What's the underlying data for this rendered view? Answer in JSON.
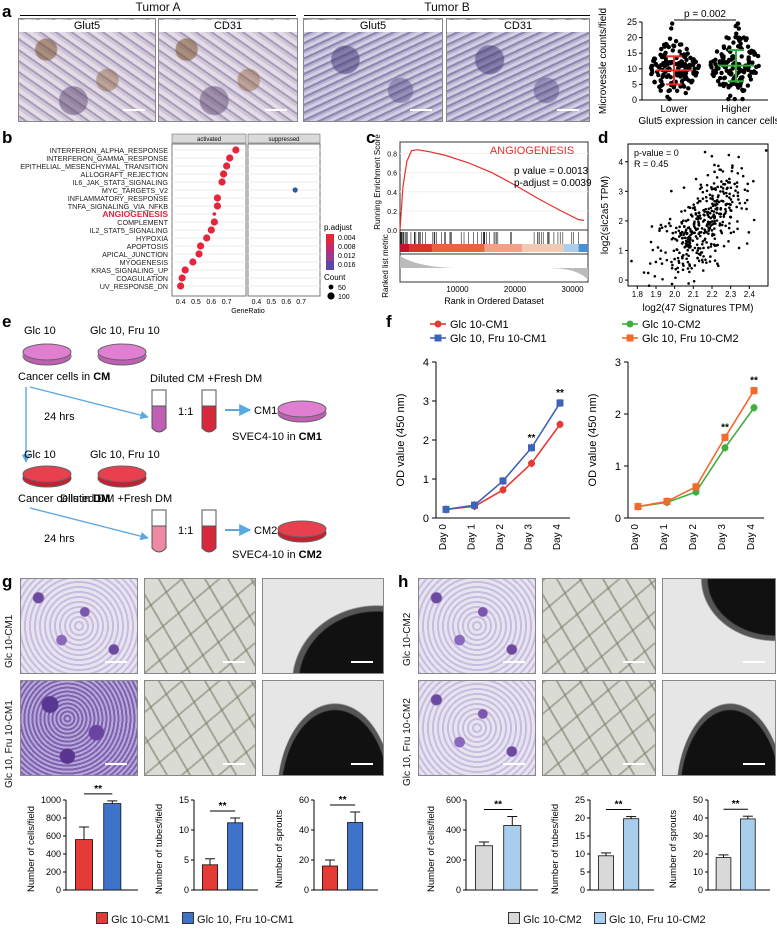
{
  "panels": {
    "a": "a",
    "b": "b",
    "c": "c",
    "d": "d",
    "e": "e",
    "f": "f",
    "g": "g",
    "h": "h"
  },
  "panel_a": {
    "group_left": "Tumor A",
    "group_right": "Tumor B",
    "stain1": "Glut5",
    "stain2": "CD31",
    "stain3": "Glut5",
    "stain4": "CD31"
  },
  "panel_b": {
    "header_activated": "activated",
    "header_suppressed": "suppressed",
    "legend_title_padj": "p.adjust",
    "legend_title_count": "Count",
    "colors": {
      "low": "#e6243a",
      "high": "#2d5aa8"
    }
  },
  "panel_c": {
    "title": "ANGIOGENESIS",
    "stats1": "p value = 0.0013",
    "stats2": "p-adjust = 0.0039",
    "ylabel_top": "Running Enrichment Score",
    "ylabel_bottom": "Ranked list metric",
    "xlabel": "Rank in Ordered Dataset"
  },
  "panel_d": {
    "stat_p": "p-value = 0",
    "stat_r": "R = 0.45",
    "xlabel": "log2(47 Signatures TPM)",
    "ylabel": "log2(slc2a5 TPM)"
  },
  "panel_e": {
    "dish1": "Glc 10",
    "dish2": "Glc 10, Fru 10",
    "cancer_cm_prefix": "Cancer cells in ",
    "cancer_cm_bold": "CM",
    "time1": "24 hrs",
    "diluted_cm": "Diluted CM +Fresh DM",
    "ratio1": "1:1",
    "out1": "CM1",
    "svec1_prefix": "SVEC4-10 in ",
    "svec1_bold": "CM1",
    "dish3": "Glc 10",
    "dish4": "Glc 10, Fru 10",
    "cancer_dm_prefix": "Cancer cells in ",
    "cancer_dm_bold": "DM",
    "diluted_dm": "Diluted DM +Fresh DM",
    "time2": "24 hrs",
    "ratio2": "1:1",
    "out2": "CM2",
    "svec2_prefix": "SVEC4-10 in ",
    "svec2_bold": "CM2"
  },
  "panel_g": {
    "row1": "Glc 10-CM1",
    "row2": "Glc 10, Fru 10-CM1",
    "legend1": "Glc 10-CM1",
    "legend2": "Glc 10, Fru 10-CM1",
    "colors": {
      "a": "#e43b36",
      "b": "#3f73c9"
    }
  },
  "panel_h": {
    "row1": "Glc 10-CM2",
    "row2": "Glc 10, Fru 10-CM2",
    "legend1": "Glc 10-CM2",
    "legend2": "Glc 10, Fru 10-CM2",
    "colors": {
      "a": "#d9d9d9",
      "b": "#a9cdec"
    }
  },
  "chart_data": [
    {
      "id": "a_scatter",
      "type": "scatter",
      "title": "p = 0.002",
      "categories": [
        "Lower",
        "Higher"
      ],
      "xlabel": "Glut5 expression in cancer cells",
      "ylabel": "Microvessle counts/field",
      "ylim": [
        0,
        25
      ],
      "yticks": [
        "0",
        "5",
        "10",
        "15",
        "20",
        "25"
      ],
      "mean": [
        9.5,
        11
      ],
      "sd": [
        4.5,
        5
      ],
      "colors": [
        "#e8302c",
        "#2fae3c"
      ]
    },
    {
      "id": "b_dotplot",
      "type": "scatter",
      "xlabel": "GeneRatio",
      "xticks_left": [
        "0.4",
        "0.5",
        "0.6",
        "0.7"
      ],
      "xticks_right": [
        "0.4",
        "0.5",
        "0.6",
        "0.7"
      ],
      "pathways": [
        "INTERFERON_ALPHA_RESPONSE",
        "INTERFERON_GAMMA_RESPONSE",
        "EPITHELIAL_MESENCHYMAL_TRANSITION",
        "ALLOGRAFT_REJECTION",
        "IL6_JAK_STAT3_SIGNALING",
        "MYC_TARGETS_V2",
        "INFLAMMATORY_RESPONSE",
        "TNFA_SIGNALING_VIA_NFKB",
        "ANGIOGENESIS",
        "COMPLEMENT",
        "IL2_STAT5_SIGNALING",
        "HYPOXIA",
        "APOPTOSIS",
        "APICAL_JUNCTION",
        "MYOGENESIS",
        "KRAS_SIGNALING_UP",
        "COAGULATION",
        "UV_RESPONSE_DN"
      ],
      "highlight": "ANGIOGENESIS",
      "ratio_activated": [
        0.76,
        0.72,
        0.7,
        0.68,
        0.67,
        null,
        0.64,
        0.64,
        0.62,
        0.62,
        0.6,
        0.57,
        0.53,
        0.52,
        0.48,
        0.43,
        0.41,
        0.4
      ],
      "ratio_suppressed": [
        null,
        null,
        null,
        null,
        null,
        0.66,
        null,
        null,
        null,
        null,
        null,
        null,
        null,
        null,
        null,
        null,
        null,
        null
      ],
      "legend_padj": [
        "0.004",
        "0.008",
        "0.012",
        "0.016"
      ],
      "legend_count": [
        "50",
        "100"
      ]
    },
    {
      "id": "c_gsea",
      "type": "line",
      "yticks": [
        "0.0",
        "0.2",
        "0.4",
        "0.6",
        "0.8"
      ],
      "xticks": [
        "10000",
        "20000",
        "30000"
      ],
      "xmax": 32000,
      "curve": [
        [
          0,
          0.0
        ],
        [
          500,
          0.45
        ],
        [
          1200,
          0.72
        ],
        [
          2000,
          0.83
        ],
        [
          3000,
          0.84
        ],
        [
          5000,
          0.82
        ],
        [
          8000,
          0.78
        ],
        [
          12000,
          0.7
        ],
        [
          16000,
          0.6
        ],
        [
          20000,
          0.47
        ],
        [
          24000,
          0.33
        ],
        [
          28000,
          0.2
        ],
        [
          31000,
          0.11
        ],
        [
          32000,
          0.1
        ]
      ],
      "line_color": "#e8302c"
    },
    {
      "id": "d_corr",
      "type": "scatter",
      "xticks": [
        "1.8",
        "1.9",
        "2.0",
        "2.1",
        "2.2",
        "2.3",
        "2.4"
      ],
      "yticks": [
        "0",
        "1",
        "2",
        "3",
        "4"
      ],
      "xlim": [
        1.75,
        2.5
      ],
      "ylim": [
        -0.2,
        4.6
      ]
    },
    {
      "id": "f_left",
      "type": "line",
      "ylabel": "OD value (450 nm)",
      "ylim": [
        0,
        4
      ],
      "yticks": [
        "0",
        "1",
        "2",
        "3",
        "4"
      ],
      "categories": [
        "Day 0",
        "Day 1",
        "Day 2",
        "Day 3",
        "Day 4"
      ],
      "series": [
        {
          "name": "Glc 10-CM1",
          "values": [
            0.22,
            0.3,
            0.72,
            1.4,
            2.4
          ],
          "color": "#e43b36"
        },
        {
          "name": "Glc 10, Fru 10-CM1",
          "values": [
            0.22,
            0.33,
            0.95,
            1.8,
            2.95
          ],
          "color": "#3f63b9"
        }
      ],
      "sig": [
        {
          "at": "Day 3",
          "text": "**"
        },
        {
          "at": "Day 4",
          "text": "**"
        }
      ]
    },
    {
      "id": "f_right",
      "type": "line",
      "ylabel": "OD value (450 nm)",
      "ylim": [
        0,
        3
      ],
      "yticks": [
        "0",
        "1",
        "2",
        "3"
      ],
      "categories": [
        "Day 0",
        "Day 1",
        "Day 2",
        "Day 3",
        "Day 4"
      ],
      "series": [
        {
          "name": "Glc 10-CM2",
          "values": [
            0.22,
            0.3,
            0.5,
            1.35,
            2.12
          ],
          "color": "#3eaf3e"
        },
        {
          "name": "Glc 10, Fru 10-CM2",
          "values": [
            0.22,
            0.32,
            0.6,
            1.55,
            2.45
          ],
          "color": "#f26a2e"
        }
      ],
      "sig": [
        {
          "at": "Day 3",
          "text": "**"
        },
        {
          "at": "Day 4",
          "text": "**"
        }
      ]
    },
    {
      "id": "g_cells",
      "type": "bar",
      "ylabel": "Number of cells/field",
      "ylim": [
        0,
        1000
      ],
      "yticks": [
        "0",
        "200",
        "400",
        "600",
        "800",
        "1000"
      ],
      "values": [
        560,
        960
      ],
      "errors": [
        140,
        30
      ],
      "sig": "**"
    },
    {
      "id": "g_tubes",
      "type": "bar",
      "ylabel": "Number of tubes/field",
      "ylim": [
        0,
        15
      ],
      "yticks": [
        "0",
        "5",
        "10",
        "15"
      ],
      "values": [
        4.2,
        11.2
      ],
      "errors": [
        1.0,
        0.8
      ],
      "sig": "**"
    },
    {
      "id": "g_sprouts",
      "type": "bar",
      "ylabel": "Number of sprouts",
      "ylim": [
        0,
        60
      ],
      "yticks": [
        "0",
        "20",
        "40",
        "60"
      ],
      "values": [
        16,
        45
      ],
      "errors": [
        4,
        7
      ],
      "sig": "**"
    },
    {
      "id": "h_cells",
      "type": "bar",
      "ylabel": "Number of cells/field",
      "ylim": [
        0,
        600
      ],
      "yticks": [
        "0",
        "200",
        "400",
        "600"
      ],
      "values": [
        295,
        430
      ],
      "errors": [
        25,
        60
      ],
      "sig": "**"
    },
    {
      "id": "h_tubes",
      "type": "bar",
      "ylabel": "Number of tubes/field",
      "ylim": [
        0,
        25
      ],
      "yticks": [
        "0",
        "5",
        "10",
        "15",
        "20",
        "25"
      ],
      "values": [
        9.5,
        19.8
      ],
      "errors": [
        0.8,
        0.6
      ],
      "sig": "**"
    },
    {
      "id": "h_sprouts",
      "type": "bar",
      "ylabel": "Number of sprouts",
      "ylim": [
        0,
        50
      ],
      "yticks": [
        "0",
        "10",
        "20",
        "30",
        "40",
        "50"
      ],
      "values": [
        18,
        39.5
      ],
      "errors": [
        1.5,
        1.5
      ],
      "sig": "**"
    }
  ]
}
